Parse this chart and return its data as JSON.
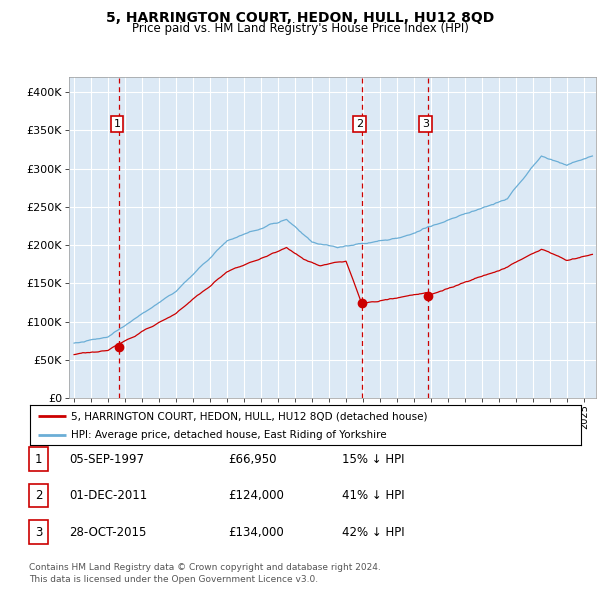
{
  "title": "5, HARRINGTON COURT, HEDON, HULL, HU12 8QD",
  "subtitle": "Price paid vs. HM Land Registry's House Price Index (HPI)",
  "plot_bg_color": "#dce9f5",
  "hpi_color": "#6baed6",
  "price_color": "#cc0000",
  "vline_color": "#cc0000",
  "ylim": [
    0,
    420000
  ],
  "yticks": [
    0,
    50000,
    100000,
    150000,
    200000,
    250000,
    300000,
    350000,
    400000
  ],
  "xlim_start": 1994.7,
  "xlim_end": 2025.7,
  "transactions": [
    {
      "date_num": 1997.67,
      "price": 66950,
      "label": "1"
    },
    {
      "date_num": 2011.92,
      "price": 124000,
      "label": "2"
    },
    {
      "date_num": 2015.83,
      "price": 134000,
      "label": "3"
    }
  ],
  "legend_line1": "5, HARRINGTON COURT, HEDON, HULL, HU12 8QD (detached house)",
  "legend_line2": "HPI: Average price, detached house, East Riding of Yorkshire",
  "table_rows": [
    {
      "num": "1",
      "date": "05-SEP-1997",
      "price": "£66,950",
      "note": "15% ↓ HPI"
    },
    {
      "num": "2",
      "date": "01-DEC-2011",
      "price": "£124,000",
      "note": "41% ↓ HPI"
    },
    {
      "num": "3",
      "date": "28-OCT-2015",
      "price": "£134,000",
      "note": "42% ↓ HPI"
    }
  ],
  "footer": "Contains HM Land Registry data © Crown copyright and database right 2024.\nThis data is licensed under the Open Government Licence v3.0."
}
